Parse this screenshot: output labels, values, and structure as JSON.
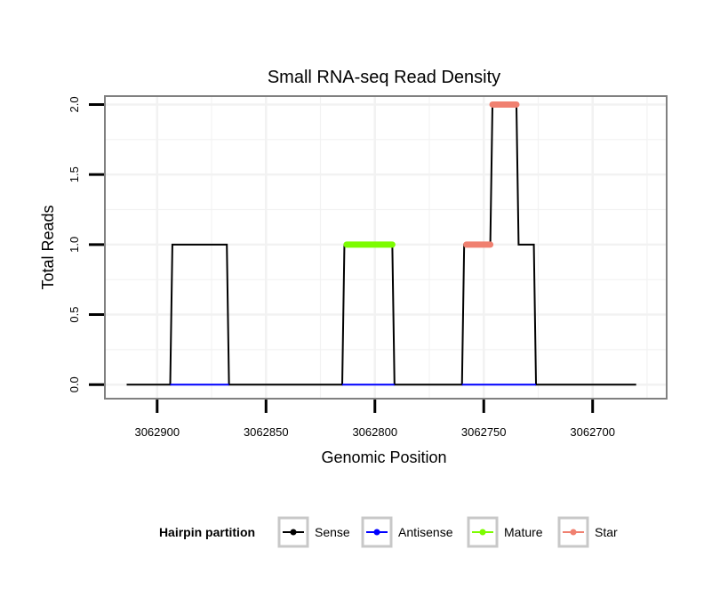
{
  "colors": {
    "sense": "#000000",
    "antisense": "#0000ff",
    "mature": "#7cfc00",
    "star": "#f08070",
    "grid": "#f2f2f2",
    "panel_border": "#808080",
    "legend_key_border": "#c8c8c8"
  },
  "chart_data": {
    "type": "line",
    "title": "Small RNA-seq Read Density",
    "xlabel": "Genomic Position",
    "ylabel": "Total Reads",
    "xlim": [
      3062924,
      3062666
    ],
    "x_reversed": true,
    "ylim": [
      -0.1,
      2.06
    ],
    "x_ticks": [
      3062900,
      3062850,
      3062800,
      3062750,
      3062700
    ],
    "x_tick_labels": [
      "3062900",
      "3062850",
      "3062800",
      "3062750",
      "3062700"
    ],
    "y_ticks": [
      0.0,
      0.5,
      1.0,
      1.5,
      2.0
    ],
    "y_tick_labels": [
      "0.0",
      "0.5",
      "1.0",
      "1.5",
      "2.0"
    ],
    "grid": true,
    "legend_position": "bottom",
    "legend_title": "Hairpin partition",
    "series": [
      {
        "name": "Sense",
        "color_key": "sense",
        "x": [
          3062914,
          3062894,
          3062893,
          3062868,
          3062867,
          3062815,
          3062814,
          3062792,
          3062791,
          3062760,
          3062759,
          3062747,
          3062746,
          3062735,
          3062734,
          3062727,
          3062726,
          3062680
        ],
        "y": [
          0,
          0,
          1,
          1,
          0,
          0,
          1,
          1,
          0,
          0,
          1,
          1,
          2,
          2,
          1,
          1,
          0,
          0
        ]
      },
      {
        "name": "Antisense",
        "color_key": "antisense",
        "segments": [
          {
            "x": [
              3062894,
              3062867
            ],
            "y": [
              0,
              0
            ]
          },
          {
            "x": [
              3062815,
              3062791
            ],
            "y": [
              0,
              0
            ]
          },
          {
            "x": [
              3062760,
              3062726
            ],
            "y": [
              0,
              0
            ]
          }
        ]
      },
      {
        "name": "Mature",
        "color_key": "mature",
        "segments": [
          {
            "x": [
              3062813,
              3062792
            ],
            "y": [
              1,
              1
            ]
          }
        ]
      },
      {
        "name": "Star",
        "color_key": "star",
        "segments": [
          {
            "x": [
              3062758,
              3062747
            ],
            "y": [
              1,
              1
            ]
          },
          {
            "x": [
              3062746,
              3062735
            ],
            "y": [
              2,
              2
            ]
          }
        ]
      }
    ]
  }
}
